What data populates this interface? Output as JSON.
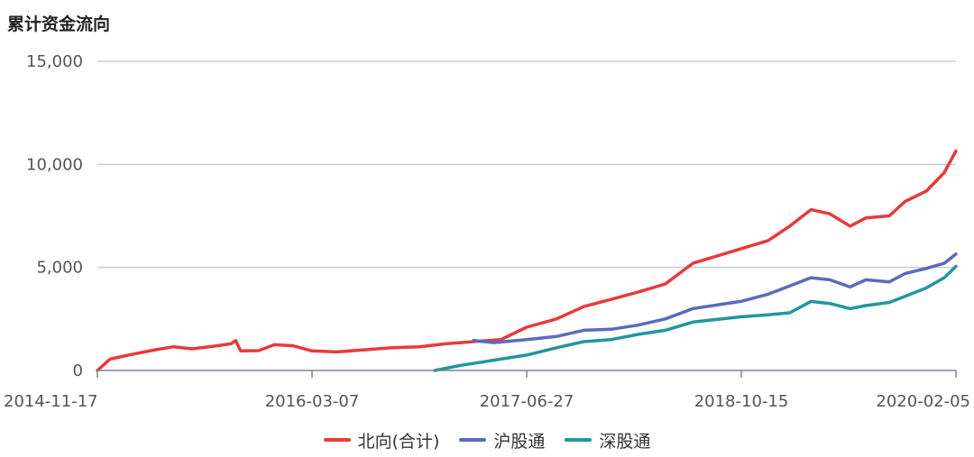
{
  "chart_data": {
    "type": "line",
    "title": "累计资金流向",
    "xlabel": "",
    "ylabel": "",
    "ylim": [
      0,
      15000
    ],
    "yticks": [
      "0",
      "5,000",
      "10,000",
      "15,000"
    ],
    "xticks": [
      "2014-11-17",
      "2016-03-07",
      "2017-06-27",
      "2018-10-15",
      "2020-02-05"
    ],
    "x_range": [
      "2014-11-17",
      "2020-02-05"
    ],
    "grid": "horizontal",
    "legend_position": "bottom",
    "series": [
      {
        "name": "北向(合计)",
        "color": "#e83a3a",
        "points": [
          [
            "2014-11-17",
            0
          ],
          [
            "2014-12-15",
            550
          ],
          [
            "2015-02-01",
            780
          ],
          [
            "2015-03-25",
            1000
          ],
          [
            "2015-05-05",
            1150
          ],
          [
            "2015-06-15",
            1050
          ],
          [
            "2015-08-10",
            1200
          ],
          [
            "2015-09-10",
            1300
          ],
          [
            "2015-09-20",
            1450
          ],
          [
            "2015-10-01",
            950
          ],
          [
            "2015-11-10",
            960
          ],
          [
            "2015-12-15",
            1250
          ],
          [
            "2016-01-25",
            1200
          ],
          [
            "2016-03-07",
            950
          ],
          [
            "2016-05-01",
            900
          ],
          [
            "2016-07-01",
            1000
          ],
          [
            "2016-09-01",
            1100
          ],
          [
            "2016-11-01",
            1150
          ],
          [
            "2017-01-01",
            1300
          ],
          [
            "2017-03-01",
            1400
          ],
          [
            "2017-05-01",
            1500
          ],
          [
            "2017-06-27",
            2100
          ],
          [
            "2017-09-01",
            2500
          ],
          [
            "2017-11-01",
            3100
          ],
          [
            "2018-01-01",
            3450
          ],
          [
            "2018-03-01",
            3800
          ],
          [
            "2018-05-01",
            4200
          ],
          [
            "2018-07-01",
            5200
          ],
          [
            "2018-10-15",
            5900
          ],
          [
            "2018-12-15",
            6300
          ],
          [
            "2019-02-01",
            7000
          ],
          [
            "2019-03-20",
            7800
          ],
          [
            "2019-05-01",
            7600
          ],
          [
            "2019-06-15",
            7000
          ],
          [
            "2019-07-20",
            7400
          ],
          [
            "2019-09-10",
            7500
          ],
          [
            "2019-10-15",
            8200
          ],
          [
            "2019-12-01",
            8700
          ],
          [
            "2020-01-10",
            9600
          ],
          [
            "2020-02-05",
            10650
          ]
        ]
      },
      {
        "name": "沪股通",
        "color": "#5b6abf",
        "points": [
          [
            "2017-03-01",
            1450
          ],
          [
            "2017-04-15",
            1350
          ],
          [
            "2017-06-27",
            1500
          ],
          [
            "2017-09-01",
            1650
          ],
          [
            "2017-11-01",
            1950
          ],
          [
            "2018-01-01",
            2000
          ],
          [
            "2018-03-01",
            2200
          ],
          [
            "2018-05-01",
            2500
          ],
          [
            "2018-07-01",
            3000
          ],
          [
            "2018-10-15",
            3350
          ],
          [
            "2018-12-15",
            3700
          ],
          [
            "2019-02-01",
            4100
          ],
          [
            "2019-03-20",
            4500
          ],
          [
            "2019-05-01",
            4400
          ],
          [
            "2019-06-15",
            4050
          ],
          [
            "2019-07-20",
            4400
          ],
          [
            "2019-09-10",
            4300
          ],
          [
            "2019-10-15",
            4700
          ],
          [
            "2019-12-01",
            4950
          ],
          [
            "2020-01-10",
            5200
          ],
          [
            "2020-02-05",
            5650
          ]
        ]
      },
      {
        "name": "深股通",
        "color": "#22969e",
        "points": [
          [
            "2016-12-05",
            0
          ],
          [
            "2017-02-01",
            250
          ],
          [
            "2017-04-15",
            500
          ],
          [
            "2017-06-27",
            750
          ],
          [
            "2017-09-01",
            1100
          ],
          [
            "2017-11-01",
            1400
          ],
          [
            "2018-01-01",
            1500
          ],
          [
            "2018-03-01",
            1750
          ],
          [
            "2018-05-01",
            1950
          ],
          [
            "2018-07-01",
            2350
          ],
          [
            "2018-10-15",
            2600
          ],
          [
            "2018-12-15",
            2700
          ],
          [
            "2019-02-01",
            2800
          ],
          [
            "2019-03-20",
            3350
          ],
          [
            "2019-05-01",
            3250
          ],
          [
            "2019-06-15",
            3000
          ],
          [
            "2019-07-20",
            3150
          ],
          [
            "2019-09-10",
            3300
          ],
          [
            "2019-10-15",
            3600
          ],
          [
            "2019-12-01",
            4000
          ],
          [
            "2020-01-10",
            4500
          ],
          [
            "2020-02-05",
            5050
          ]
        ]
      }
    ]
  }
}
